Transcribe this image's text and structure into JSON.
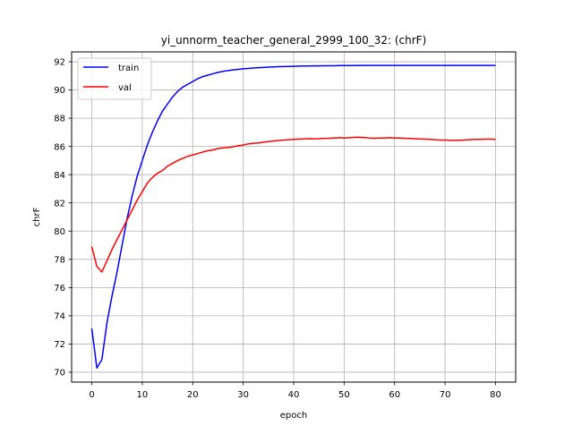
{
  "chart_data": {
    "type": "line",
    "title": "yi_unnorm_teacher_general_2999_100_32: (chrF)",
    "xlabel": "epoch",
    "ylabel": "chrF",
    "xlim": [
      -4,
      84
    ],
    "ylim": [
      69.3,
      92.7
    ],
    "xticks": [
      0,
      10,
      20,
      30,
      40,
      50,
      60,
      70,
      80
    ],
    "yticks": [
      70,
      72,
      74,
      76,
      78,
      80,
      82,
      84,
      86,
      88,
      90,
      92
    ],
    "grid": true,
    "legend_position": "top-left",
    "series": [
      {
        "name": "train",
        "color": "#0000ff",
        "x": [
          0,
          1,
          2,
          3,
          4,
          5,
          6,
          7,
          8,
          9,
          10,
          11,
          12,
          13,
          14,
          15,
          16,
          17,
          18,
          19,
          20,
          21,
          22,
          23,
          24,
          25,
          26,
          27,
          28,
          29,
          30,
          31,
          32,
          33,
          34,
          35,
          36,
          37,
          38,
          39,
          40,
          41,
          42,
          43,
          44,
          45,
          46,
          47,
          48,
          49,
          50,
          51,
          52,
          53,
          54,
          55,
          56,
          57,
          58,
          59,
          60,
          61,
          62,
          63,
          64,
          65,
          66,
          67,
          68,
          69,
          70,
          71,
          72,
          73,
          74,
          75,
          76,
          77,
          78,
          79,
          80
        ],
        "y": [
          73.1,
          70.3,
          70.9,
          73.5,
          75.4,
          77.1,
          79.0,
          80.9,
          82.5,
          83.9,
          85.0,
          86.1,
          87.0,
          87.8,
          88.5,
          89.0,
          89.5,
          89.9,
          90.2,
          90.4,
          90.6,
          90.8,
          90.95,
          91.05,
          91.15,
          91.25,
          91.32,
          91.38,
          91.42,
          91.46,
          91.5,
          91.53,
          91.56,
          91.58,
          91.6,
          91.62,
          91.64,
          91.65,
          91.66,
          91.67,
          91.68,
          91.69,
          91.7,
          91.7,
          91.71,
          91.71,
          91.72,
          91.72,
          91.72,
          91.73,
          91.73,
          91.73,
          91.73,
          91.74,
          91.74,
          91.74,
          91.74,
          91.74,
          91.74,
          91.74,
          91.74,
          91.74,
          91.74,
          91.74,
          91.74,
          91.74,
          91.74,
          91.74,
          91.74,
          91.74,
          91.74,
          91.74,
          91.74,
          91.74,
          91.74,
          91.74,
          91.74,
          91.74,
          91.74,
          91.74,
          91.74
        ]
      },
      {
        "name": "val",
        "color": "#ff0000",
        "x": [
          0,
          1,
          2,
          3,
          4,
          5,
          6,
          7,
          8,
          9,
          10,
          11,
          12,
          13,
          14,
          15,
          16,
          17,
          18,
          19,
          20,
          21,
          22,
          23,
          24,
          25,
          26,
          27,
          28,
          29,
          30,
          31,
          32,
          33,
          34,
          35,
          36,
          37,
          38,
          39,
          40,
          41,
          42,
          43,
          44,
          45,
          46,
          47,
          48,
          49,
          50,
          51,
          52,
          53,
          54,
          55,
          56,
          57,
          58,
          59,
          60,
          61,
          62,
          63,
          64,
          65,
          66,
          67,
          68,
          69,
          70,
          71,
          72,
          73,
          74,
          75,
          76,
          77,
          78,
          79,
          80
        ],
        "y": [
          78.9,
          77.5,
          77.1,
          77.9,
          78.7,
          79.4,
          80.1,
          80.8,
          81.5,
          82.2,
          82.8,
          83.4,
          83.8,
          84.1,
          84.3,
          84.6,
          84.8,
          85.0,
          85.15,
          85.3,
          85.4,
          85.5,
          85.6,
          85.7,
          85.75,
          85.85,
          85.9,
          85.92,
          85.98,
          86.05,
          86.1,
          86.18,
          86.22,
          86.25,
          86.3,
          86.35,
          86.38,
          86.42,
          86.45,
          86.48,
          86.5,
          86.52,
          86.53,
          86.55,
          86.54,
          86.55,
          86.57,
          86.58,
          86.6,
          86.62,
          86.6,
          86.62,
          86.64,
          86.65,
          86.63,
          86.6,
          86.58,
          86.6,
          86.6,
          86.62,
          86.6,
          86.6,
          86.58,
          86.57,
          86.55,
          86.53,
          86.52,
          86.5,
          86.48,
          86.45,
          86.45,
          86.44,
          86.44,
          86.44,
          86.46,
          86.48,
          86.5,
          86.5,
          86.52,
          86.52,
          86.5
        ]
      }
    ]
  }
}
